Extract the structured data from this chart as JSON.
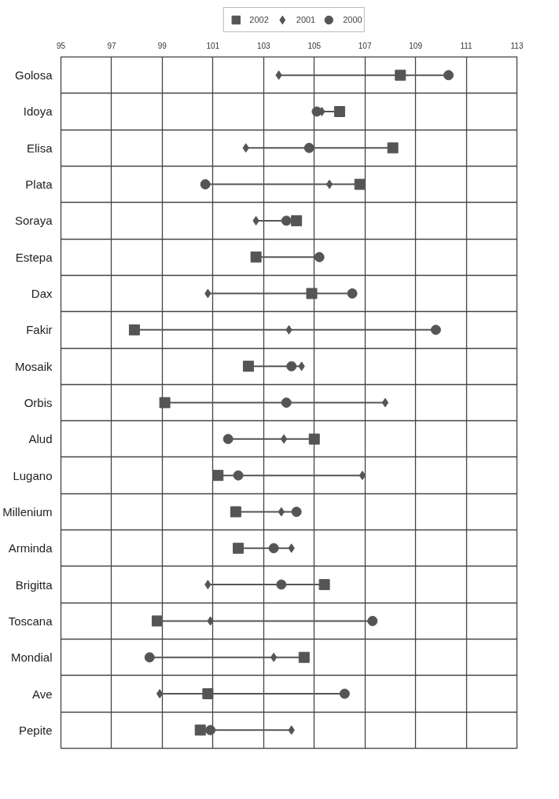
{
  "chart_data": {
    "type": "scatter",
    "orientation": "horizontal",
    "categories": [
      "Golosa",
      "Idoya",
      "Elisa",
      "Plata",
      "Soraya",
      "Estepa",
      "Dax",
      "Fakir",
      "Mosaik",
      "Orbis",
      "Alud",
      "Lugano",
      "Millenium",
      "Arminda",
      "Brigitta",
      "Toscana",
      "Mondial",
      "Ave",
      "Pepite"
    ],
    "series": [
      {
        "name": "2002",
        "color": "#555555",
        "marker": "square",
        "values": [
          108.4,
          106.0,
          108.1,
          106.8,
          104.3,
          102.7,
          104.9,
          97.9,
          102.4,
          99.1,
          105.0,
          101.2,
          101.9,
          102.0,
          105.4,
          98.8,
          104.6,
          100.8,
          100.5
        ]
      },
      {
        "name": "2001",
        "color": "#555555",
        "marker": "diamond",
        "values": [
          103.6,
          105.3,
          102.3,
          105.6,
          102.7,
          null,
          100.8,
          104.0,
          104.5,
          107.8,
          103.8,
          106.9,
          103.7,
          104.1,
          100.8,
          100.9,
          103.4,
          98.9,
          104.1
        ]
      },
      {
        "name": "2000",
        "color": "#555555",
        "marker": "circle",
        "values": [
          110.3,
          105.1,
          104.8,
          100.7,
          103.9,
          105.2,
          106.5,
          109.8,
          104.1,
          103.9,
          101.6,
          102.0,
          104.3,
          103.4,
          103.7,
          107.3,
          98.5,
          106.2,
          100.9
        ]
      }
    ],
    "xlim": [
      95,
      113
    ],
    "xticks": [
      95,
      97,
      99,
      101,
      103,
      105,
      107,
      109,
      111,
      113
    ],
    "grid": true,
    "legend": "top"
  }
}
